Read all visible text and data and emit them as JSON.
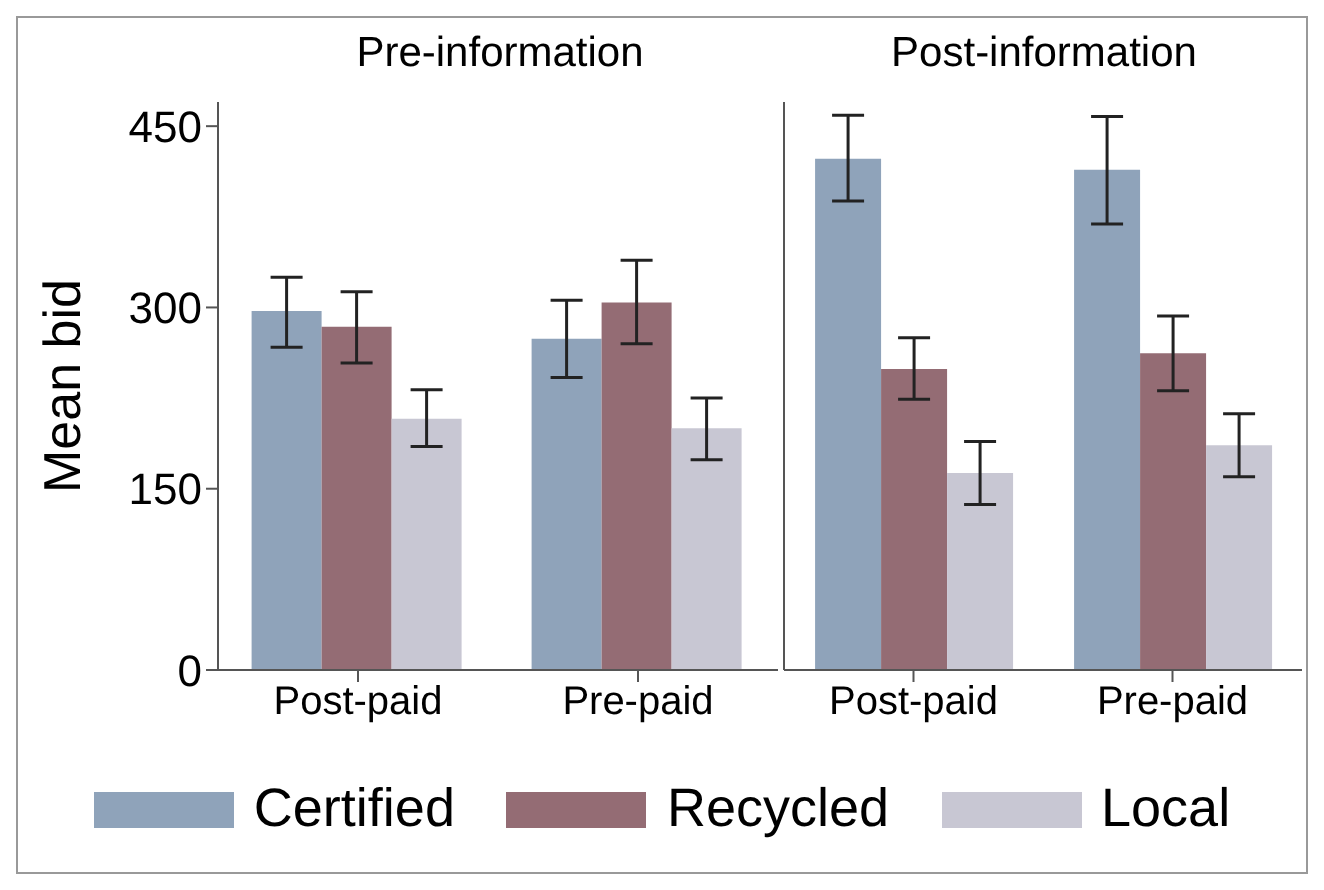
{
  "chart_data": [
    {
      "type": "bar",
      "title": "Pre-information",
      "ylabel": "Mean bid",
      "categories": [
        "Post-paid",
        "Pre-paid"
      ],
      "ylim": [
        0,
        470
      ],
      "yticks": [
        0,
        150,
        300,
        450
      ],
      "grid": false,
      "legend": "bottom",
      "series": [
        {
          "name": "Certified",
          "color": "#8fa3ba",
          "values": [
            297,
            274
          ],
          "errors": [
            [
              267,
              325
            ],
            [
              242,
              306
            ]
          ]
        },
        {
          "name": "Recycled",
          "color": "#946c74",
          "values": [
            284,
            304
          ],
          "errors": [
            [
              254,
              313
            ],
            [
              270,
              339
            ]
          ]
        },
        {
          "name": "Local",
          "color": "#c8c7d3",
          "values": [
            208,
            200
          ],
          "errors": [
            [
              185,
              232
            ],
            [
              174,
              225
            ]
          ]
        }
      ]
    },
    {
      "type": "bar",
      "title": "Post-information",
      "categories": [
        "Post-paid",
        "Pre-paid"
      ],
      "ylim": [
        0,
        470
      ],
      "yticks": [
        0,
        150,
        300,
        450
      ],
      "grid": false,
      "tick_labels": "x",
      "series": [
        {
          "color": "#8fa3ba",
          "values": [
            423,
            414
          ],
          "errors": [
            [
              388,
              459
            ],
            [
              369,
              458
            ]
          ]
        },
        {
          "color": "#946c74",
          "values": [
            249,
            262
          ],
          "errors": [
            [
              224,
              275
            ],
            [
              231,
              293
            ]
          ]
        },
        {
          "color": "#c8c7d3",
          "values": [
            163,
            186
          ],
          "errors": [
            [
              137,
              189
            ],
            [
              160,
              212
            ]
          ]
        }
      ]
    }
  ]
}
